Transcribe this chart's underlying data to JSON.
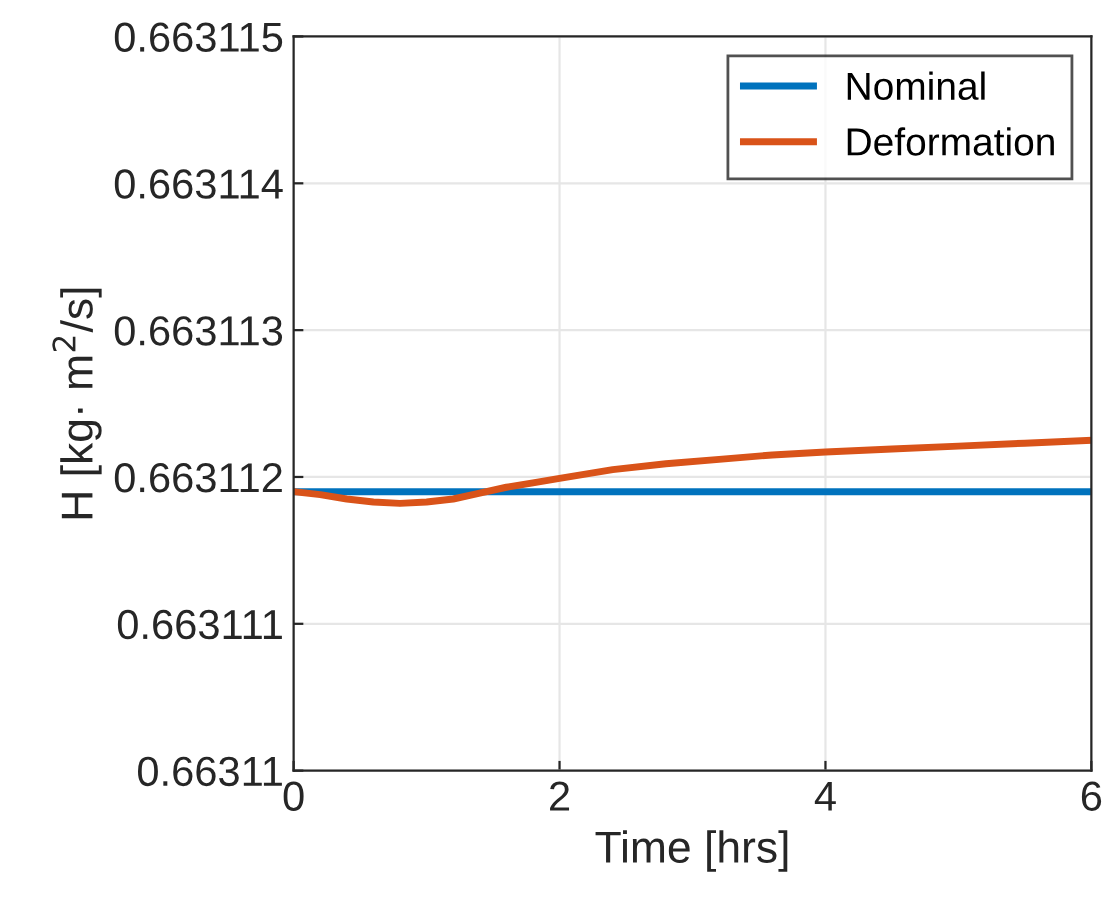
{
  "chart_data": {
    "type": "line",
    "xlabel": "Time [hrs]",
    "ylabel": "H [kg· m$^{2}$/s]",
    "xlim": [
      0,
      6
    ],
    "xticks": [
      0,
      2,
      4,
      6
    ],
    "ylim": [
      0.66311,
      0.663115
    ],
    "yticks": [
      0.66311,
      0.663111,
      0.663112,
      0.663113,
      0.663114,
      0.663115
    ],
    "grid": true,
    "legend": "top right",
    "series": [
      {
        "name": "Nominal",
        "color": "#0072bd",
        "x": [
          0,
          6
        ],
        "values": [
          0.6631119,
          0.6631119
        ]
      },
      {
        "name": "Deformation",
        "color": "#d95319",
        "x": [
          0,
          0.2,
          0.4,
          0.6,
          0.8,
          1.0,
          1.2,
          1.4,
          1.6,
          1.8,
          2.0,
          2.4,
          2.8,
          3.2,
          3.6,
          4.0,
          4.5,
          5.0,
          5.5,
          6.0
        ],
        "values": [
          0.6631119,
          0.66311188,
          0.66311185,
          0.66311183,
          0.66311182,
          0.66311183,
          0.66311185,
          0.66311189,
          0.66311193,
          0.66311196,
          0.66311199,
          0.66311205,
          0.66311209,
          0.66311212,
          0.66311215,
          0.66311217,
          0.66311219,
          0.66311221,
          0.66311223,
          0.66311225
        ]
      }
    ]
  }
}
